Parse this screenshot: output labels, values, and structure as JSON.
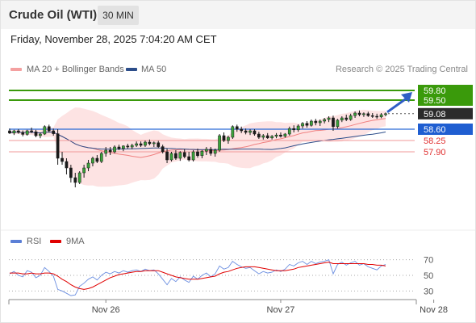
{
  "header": {
    "title": "Crude Oil (WTI)",
    "interval": "30 MIN"
  },
  "datetime": "Friday, November 28, 2025 7:04:20 AM CET",
  "legend": {
    "bollinger": {
      "label": "MA 20 + Bollinger Bands",
      "color": "#f08080"
    },
    "ma50": {
      "label": "MA 50",
      "color": "#2c4d8a"
    },
    "research": "Research © 2025 Trading Central"
  },
  "rsi_legend": {
    "rsi": {
      "label": "RSI",
      "color": "#5b7fd6"
    },
    "ma9": {
      "label": "9MA",
      "color": "#e00000"
    }
  },
  "chart_data": [
    {
      "type": "candlestick",
      "ylim": [
        55.7,
        60.2
      ],
      "x_ticks": [
        {
          "label": "Nov 26",
          "index": 22
        },
        {
          "label": "Nov 27",
          "index": 62
        },
        {
          "label": "Nov 28",
          "index": 97
        }
      ],
      "levels": [
        {
          "value": 59.8,
          "label": "59.80",
          "kind": "resistance"
        },
        {
          "value": 59.5,
          "label": "59.50",
          "kind": "resistance"
        },
        {
          "value": 59.08,
          "label": "59.08",
          "kind": "last"
        },
        {
          "value": 58.6,
          "label": "58.60",
          "kind": "pivot"
        },
        {
          "value": 58.25,
          "label": "58.25",
          "kind": "support"
        },
        {
          "value": 57.9,
          "label": "57.90",
          "kind": "support"
        }
      ],
      "candles": [
        [
          58.55,
          58.62,
          58.45,
          58.48
        ],
        [
          58.48,
          58.58,
          58.42,
          58.55
        ],
        [
          58.55,
          58.6,
          58.46,
          58.5
        ],
        [
          58.5,
          58.56,
          58.38,
          58.44
        ],
        [
          58.44,
          58.58,
          58.4,
          58.55
        ],
        [
          58.55,
          58.65,
          58.48,
          58.52
        ],
        [
          58.52,
          58.58,
          58.35,
          58.4
        ],
        [
          58.4,
          58.5,
          58.32,
          58.45
        ],
        [
          58.45,
          58.72,
          58.42,
          58.68
        ],
        [
          58.68,
          58.74,
          58.5,
          58.55
        ],
        [
          58.55,
          58.62,
          58.4,
          58.46
        ],
        [
          58.46,
          58.6,
          57.5,
          57.7
        ],
        [
          57.7,
          57.9,
          57.5,
          57.6
        ],
        [
          57.6,
          57.7,
          57.2,
          57.4
        ],
        [
          57.4,
          57.5,
          56.95,
          57.1
        ],
        [
          57.1,
          57.25,
          56.8,
          56.95
        ],
        [
          56.95,
          57.3,
          56.9,
          57.25
        ],
        [
          57.25,
          57.5,
          57.1,
          57.4
        ],
        [
          57.4,
          57.65,
          57.3,
          57.55
        ],
        [
          57.55,
          57.75,
          57.45,
          57.7
        ],
        [
          57.7,
          57.8,
          57.55,
          57.6
        ],
        [
          57.6,
          57.9,
          57.55,
          57.85
        ],
        [
          57.85,
          58.05,
          57.75,
          57.95
        ],
        [
          57.95,
          58.05,
          57.8,
          57.9
        ],
        [
          57.9,
          58.1,
          57.85,
          58.05
        ],
        [
          58.05,
          58.12,
          57.95,
          58.0
        ],
        [
          58.0,
          58.1,
          57.92,
          58.08
        ],
        [
          58.08,
          58.15,
          58.0,
          58.05
        ],
        [
          58.05,
          58.15,
          57.98,
          58.1
        ],
        [
          58.1,
          58.22,
          58.05,
          58.15
        ],
        [
          58.15,
          58.22,
          58.05,
          58.1
        ],
        [
          58.1,
          58.25,
          58.05,
          58.2
        ],
        [
          58.2,
          58.28,
          58.1,
          58.15
        ],
        [
          58.15,
          58.22,
          58.05,
          58.18
        ],
        [
          58.18,
          58.24,
          58.02,
          58.06
        ],
        [
          58.06,
          58.12,
          57.85,
          57.9
        ],
        [
          57.9,
          58.0,
          57.55,
          57.65
        ],
        [
          57.65,
          57.9,
          57.6,
          57.85
        ],
        [
          57.85,
          57.95,
          57.65,
          57.7
        ],
        [
          57.7,
          57.92,
          57.62,
          57.88
        ],
        [
          57.88,
          57.98,
          57.7,
          57.75
        ],
        [
          57.75,
          57.9,
          57.6,
          57.65
        ],
        [
          57.65,
          57.95,
          57.6,
          57.9
        ],
        [
          57.9,
          58.0,
          57.72,
          57.78
        ],
        [
          57.78,
          57.95,
          57.7,
          57.92
        ],
        [
          57.92,
          58.05,
          57.8,
          57.98
        ],
        [
          57.98,
          58.05,
          57.78,
          57.85
        ],
        [
          57.85,
          58.0,
          57.75,
          57.95
        ],
        [
          57.95,
          58.45,
          57.9,
          58.4
        ],
        [
          58.4,
          58.5,
          58.2,
          58.25
        ],
        [
          58.25,
          58.4,
          58.15,
          58.35
        ],
        [
          58.35,
          58.72,
          58.3,
          58.68
        ],
        [
          58.68,
          58.74,
          58.52,
          58.6
        ],
        [
          58.6,
          58.68,
          58.48,
          58.55
        ],
        [
          58.55,
          58.62,
          58.44,
          58.5
        ],
        [
          58.5,
          58.6,
          58.42,
          58.55
        ],
        [
          58.55,
          58.6,
          58.4,
          58.45
        ],
        [
          58.45,
          58.52,
          58.3,
          58.35
        ],
        [
          58.35,
          58.45,
          58.28,
          58.4
        ],
        [
          58.4,
          58.48,
          58.3,
          58.33
        ],
        [
          58.33,
          58.42,
          58.28,
          58.38
        ],
        [
          58.38,
          58.48,
          58.32,
          58.42
        ],
        [
          58.42,
          58.5,
          58.34,
          58.38
        ],
        [
          58.38,
          58.48,
          58.34,
          58.45
        ],
        [
          58.45,
          58.68,
          58.4,
          58.62
        ],
        [
          58.62,
          58.72,
          58.5,
          58.58
        ],
        [
          58.58,
          58.75,
          58.52,
          58.7
        ],
        [
          58.7,
          58.82,
          58.62,
          58.78
        ],
        [
          58.78,
          58.85,
          58.65,
          58.72
        ],
        [
          58.72,
          58.9,
          58.68,
          58.85
        ],
        [
          58.85,
          58.92,
          58.72,
          58.8
        ],
        [
          58.8,
          58.9,
          58.7,
          58.85
        ],
        [
          58.85,
          58.95,
          58.78,
          58.9
        ],
        [
          58.9,
          59.0,
          58.82,
          58.95
        ],
        [
          58.95,
          59.02,
          58.55,
          58.68
        ],
        [
          58.68,
          58.92,
          58.62,
          58.88
        ],
        [
          58.88,
          59.0,
          58.82,
          58.95
        ],
        [
          58.95,
          59.05,
          58.85,
          58.9
        ],
        [
          58.9,
          59.08,
          58.86,
          59.02
        ],
        [
          59.02,
          59.15,
          58.95,
          59.1
        ],
        [
          59.1,
          59.18,
          59.0,
          59.05
        ],
        [
          59.05,
          59.12,
          58.98,
          59.08
        ],
        [
          59.08,
          59.14,
          58.98,
          59.02
        ],
        [
          59.02,
          59.1,
          58.95,
          59.0
        ],
        [
          59.0,
          59.08,
          58.92,
          58.98
        ],
        [
          58.98,
          59.1,
          58.94,
          59.05
        ],
        [
          59.05,
          59.12,
          59.0,
          59.08
        ]
      ]
    },
    {
      "type": "line",
      "title": "RSI",
      "ylim": [
        20,
        80
      ],
      "y_ticks": [
        70,
        50,
        30
      ],
      "series": [
        {
          "name": "RSI",
          "values": [
            52,
            55,
            50,
            48,
            56,
            54,
            47,
            50,
            60,
            55,
            49,
            32,
            30,
            27,
            24,
            25,
            36,
            40,
            45,
            48,
            44,
            50,
            54,
            52,
            55,
            53,
            56,
            54,
            56,
            57,
            55,
            58,
            56,
            57,
            52,
            45,
            38,
            46,
            42,
            48,
            44,
            41,
            49,
            45,
            50,
            53,
            48,
            52,
            62,
            58,
            60,
            68,
            64,
            61,
            59,
            60,
            56,
            52,
            55,
            53,
            54,
            57,
            55,
            58,
            64,
            62,
            66,
            68,
            64,
            68,
            65,
            67,
            68,
            70,
            52,
            64,
            67,
            63,
            66,
            68,
            63,
            65,
            61,
            59,
            57,
            62,
            64
          ]
        },
        {
          "name": "9MA",
          "values": [
            53,
            53,
            53,
            52,
            52,
            53,
            52,
            52,
            53,
            53,
            52,
            49,
            45,
            42,
            38,
            35,
            33,
            32,
            33,
            35,
            38,
            41,
            44,
            47,
            49,
            51,
            52,
            53,
            54,
            55,
            55,
            56,
            56,
            56,
            56,
            54,
            52,
            50,
            48,
            47,
            46,
            45,
            45,
            45,
            46,
            47,
            48,
            49,
            52,
            54,
            55,
            57,
            59,
            60,
            61,
            61,
            61,
            60,
            59,
            58,
            57,
            56,
            56,
            56,
            57,
            58,
            60,
            61,
            62,
            63,
            64,
            65,
            66,
            67,
            65,
            65,
            65,
            65,
            65,
            65,
            65,
            65,
            64,
            64,
            63,
            63,
            62
          ]
        }
      ]
    }
  ]
}
